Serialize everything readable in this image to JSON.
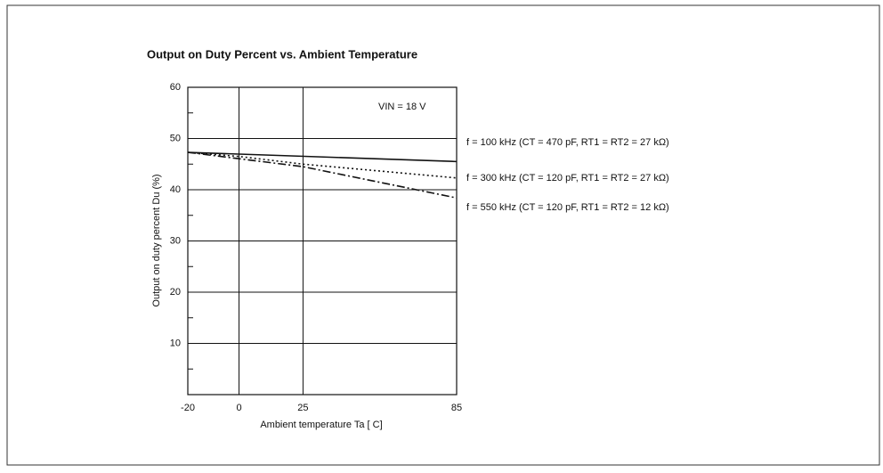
{
  "chart_data": {
    "type": "line",
    "title": "Output on Duty Percent vs. Ambient Temperature",
    "xlabel": "Ambient temperature Ta [ C]",
    "ylabel": "Output on duty percent Du (%)",
    "annotation": "VIN = 18 V",
    "xlim": [
      -20,
      85
    ],
    "xticks": [
      -20,
      0,
      25,
      85
    ],
    "ylim": [
      0,
      60
    ],
    "yticks": [
      10,
      20,
      30,
      40,
      50,
      60
    ],
    "grid": true,
    "series": [
      {
        "name": "f = 100 kHz (CT = 470 pF, RT1 = RT2 = 27 kΩ)",
        "color": "#111111",
        "style": "solid",
        "x": [
          -20,
          85
        ],
        "values": [
          47.3,
          45.5
        ]
      },
      {
        "name": "f = 300 kHz (CT = 120 pF, RT1 = RT2 = 27 kΩ)",
        "color": "#111111",
        "style": "dotted",
        "x": [
          -20,
          0,
          25,
          85
        ],
        "values": [
          47.3,
          46.5,
          45,
          42.3
        ]
      },
      {
        "name": "f = 550 kHz (CT = 120 pF, RT1 = RT2 = 12 kΩ)",
        "color": "#111111",
        "style": "dashdot",
        "x": [
          -20,
          25,
          85
        ],
        "values": [
          47.3,
          44.5,
          38.4
        ]
      }
    ]
  }
}
